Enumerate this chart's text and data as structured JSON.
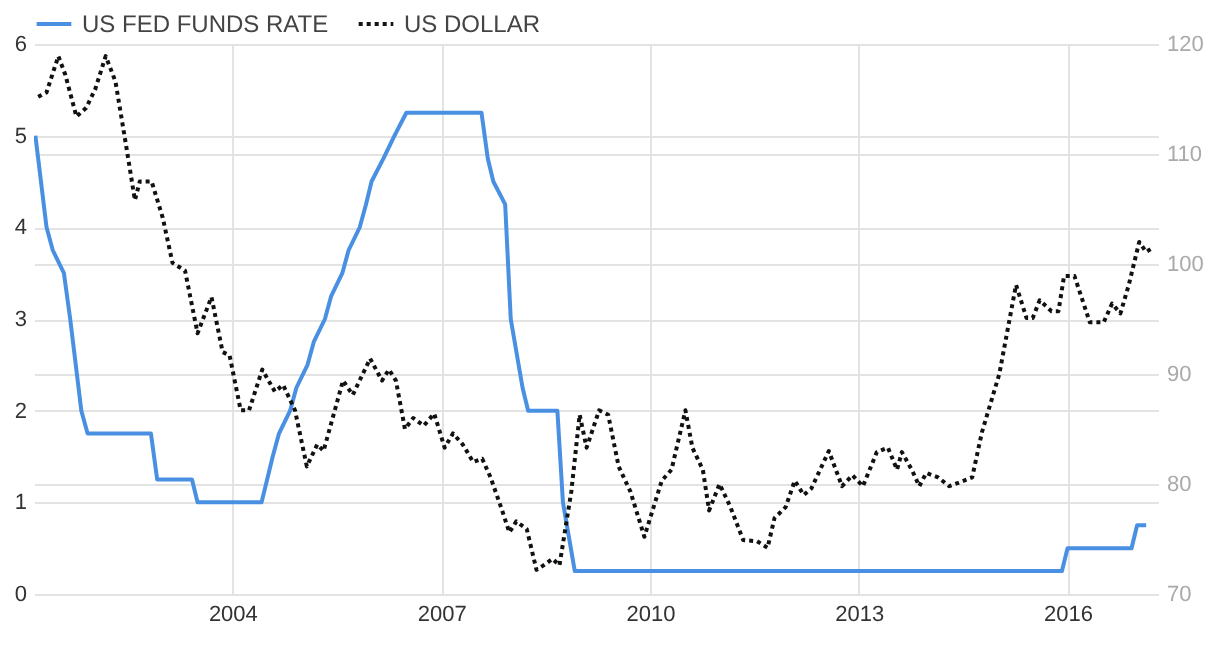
{
  "chart_data": {
    "type": "line",
    "series": [
      {
        "name": "US FED FUNDS RATE",
        "color": "#4a90e2",
        "line_style": "solid",
        "x": [
          2001.17,
          2001.25,
          2001.33,
          2001.42,
          2001.58,
          2001.67,
          2001.75,
          2001.83,
          2001.92,
          2002.83,
          2002.92,
          2003.42,
          2003.5,
          2004.42,
          2004.5,
          2004.58,
          2004.67,
          2004.83,
          2004.92,
          2005.08,
          2005.17,
          2005.33,
          2005.42,
          2005.58,
          2005.67,
          2005.83,
          2005.92,
          2006.0,
          2006.17,
          2006.33,
          2006.5,
          2007.58,
          2007.67,
          2007.75,
          2007.92,
          2008.0,
          2008.17,
          2008.25,
          2008.67,
          2008.75,
          2008.92,
          2015.92,
          2016.0,
          2016.92,
          2017.0,
          2017.13
        ],
        "values": [
          5.0,
          4.5,
          4.0,
          3.75,
          3.5,
          3.0,
          2.5,
          2.0,
          1.75,
          1.75,
          1.25,
          1.25,
          1.0,
          1.0,
          1.25,
          1.5,
          1.75,
          2.0,
          2.25,
          2.5,
          2.75,
          3.0,
          3.25,
          3.5,
          3.75,
          4.0,
          4.25,
          4.5,
          4.75,
          5.0,
          5.25,
          5.25,
          4.75,
          4.5,
          4.25,
          3.0,
          2.25,
          2.0,
          2.0,
          1.0,
          0.25,
          0.25,
          0.5,
          0.5,
          0.75,
          0.75
        ]
      },
      {
        "name": "US DOLLAR",
        "color": "#111111",
        "line_style": "dotted",
        "axis": "y2",
        "x": [
          2001.21,
          2001.33,
          2001.5,
          2001.6,
          2001.76,
          2001.9,
          2002.03,
          2002.18,
          2002.32,
          2002.47,
          2002.6,
          2002.67,
          2002.84,
          2003.0,
          2003.14,
          2003.32,
          2003.5,
          2003.7,
          2003.86,
          2003.96,
          2004.12,
          2004.24,
          2004.43,
          2004.61,
          2004.73,
          2004.9,
          2005.07,
          2005.22,
          2005.31,
          2005.59,
          2005.73,
          2005.98,
          2006.15,
          2006.25,
          2006.35,
          2006.48,
          2006.6,
          2006.75,
          2006.9,
          2007.05,
          2007.17,
          2007.31,
          2007.46,
          2007.59,
          2007.71,
          2007.86,
          2007.98,
          2008.08,
          2008.23,
          2008.37,
          2008.47,
          2008.6,
          2008.7,
          2008.87,
          2008.99,
          2009.09,
          2009.27,
          2009.4,
          2009.55,
          2009.72,
          2009.92,
          2010.17,
          2010.31,
          2010.51,
          2010.61,
          2010.76,
          2010.85,
          2011.0,
          2011.15,
          2011.34,
          2011.54,
          2011.69,
          2011.79,
          2011.95,
          2012.08,
          2012.21,
          2012.32,
          2012.57,
          2012.76,
          2012.91,
          2013.06,
          2013.26,
          2013.42,
          2013.55,
          2013.62,
          2013.77,
          2013.87,
          2013.97,
          2014.14,
          2014.3,
          2014.43,
          2014.63,
          2014.77,
          2015.02,
          2015.26,
          2015.41,
          2015.5,
          2015.6,
          2015.77,
          2015.87,
          2015.95,
          2016.1,
          2016.32,
          2016.52,
          2016.64,
          2016.76,
          2016.88,
          2017.03,
          2017.13,
          2017.23
        ],
        "values": [
          115.2,
          115.6,
          118.9,
          117.2,
          113.4,
          114.2,
          115.9,
          118.9,
          116.6,
          110.9,
          105.8,
          107.5,
          107.5,
          104.2,
          100.1,
          99.4,
          93.7,
          97.0,
          92.0,
          91.7,
          86.7,
          86.7,
          90.4,
          88.4,
          89.0,
          86.7,
          81.6,
          83.6,
          83.0,
          89.4,
          88.1,
          91.4,
          89.4,
          90.4,
          89.4,
          85.0,
          86.0,
          85.3,
          86.4,
          83.3,
          84.6,
          83.6,
          82.0,
          82.3,
          80.6,
          77.9,
          75.6,
          76.6,
          75.9,
          72.2,
          72.6,
          73.2,
          72.6,
          79.3,
          86.3,
          83.3,
          86.7,
          86.3,
          81.6,
          79.3,
          75.2,
          80.3,
          81.3,
          86.7,
          83.3,
          81.3,
          77.6,
          80.0,
          78.0,
          74.9,
          74.8,
          74.2,
          76.9,
          77.9,
          80.3,
          79.0,
          79.6,
          83.0,
          79.8,
          80.8,
          79.8,
          82.9,
          83.3,
          81.3,
          82.9,
          81.2,
          79.8,
          81.0,
          80.6,
          79.8,
          80.1,
          80.6,
          84.7,
          90.0,
          98.1,
          95.1,
          95.1,
          96.7,
          95.7,
          95.7,
          98.9,
          98.9,
          94.7,
          94.7,
          96.4,
          95.5,
          98.1,
          102.0,
          101.1,
          101.5
        ]
      }
    ],
    "xlim": [
      2001.15,
      2017.3
    ],
    "xticks": [
      2004,
      2007,
      2010,
      2013,
      2016
    ],
    "ylim": [
      0,
      6
    ],
    "yticks": [
      0,
      1,
      2,
      3,
      4,
      5,
      6
    ],
    "y2lim": [
      70,
      120
    ],
    "y2ticks": [
      70,
      80,
      90,
      100,
      110,
      120
    ],
    "grid": true,
    "legend": "top left",
    "marker": "none"
  }
}
